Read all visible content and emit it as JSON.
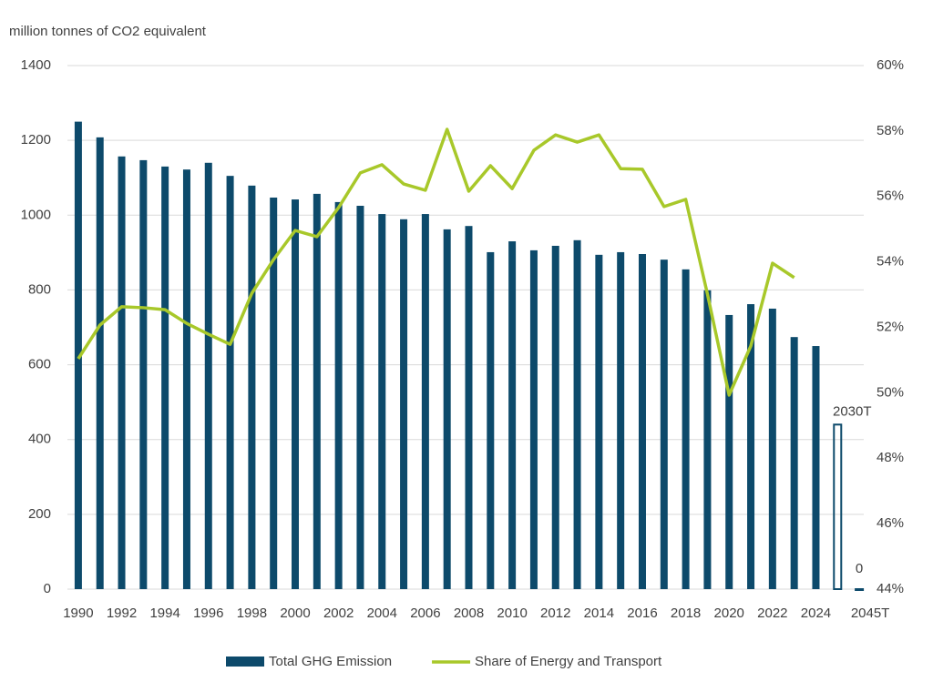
{
  "chart_data": {
    "type": "bar-line",
    "y_axis_label": "million tonnes of CO2 equivalent",
    "categories": [
      "1990",
      null,
      "1992",
      null,
      "1994",
      null,
      "1996",
      null,
      "1998",
      null,
      "2000",
      null,
      "2002",
      null,
      "2004",
      null,
      "2006",
      null,
      "2008",
      null,
      "2010",
      null,
      "2012",
      null,
      "2014",
      null,
      "2016",
      null,
      "2018",
      null,
      "2020",
      null,
      "2022",
      null,
      "2024",
      "2030T",
      "2045T"
    ],
    "series": [
      {
        "name": "Total GHG Emission",
        "type": "bar",
        "color": "#0d4a6b",
        "values": [
          1250,
          1208,
          1157,
          1147,
          1130,
          1122,
          1140,
          1105,
          1079,
          1047,
          1042,
          1057,
          1035,
          1025,
          1003,
          989,
          1003,
          962,
          971,
          901,
          930,
          906,
          918,
          933,
          894,
          901,
          896,
          881,
          855,
          799,
          733,
          762,
          750,
          674,
          650,
          null,
          null
        ]
      },
      {
        "name": "Share of Energy and Transport",
        "type": "line",
        "color": "#a8c82a",
        "axis": "y2",
        "values": [
          51.04,
          52.07,
          52.63,
          52.6,
          52.54,
          52.12,
          51.79,
          51.48,
          53.04,
          54.07,
          54.96,
          54.77,
          55.66,
          56.72,
          56.97,
          56.38,
          56.19,
          58.05,
          56.16,
          56.94,
          56.24,
          57.41,
          57.88,
          57.66,
          57.88,
          56.85,
          56.83,
          55.69,
          55.91,
          53.02,
          49.93,
          51.43,
          53.96,
          53.52,
          null,
          null,
          null
        ]
      },
      {
        "type": "bar",
        "style": "outline",
        "color": "#0d4a6b",
        "values": [
          null,
          null,
          null,
          null,
          null,
          null,
          null,
          null,
          null,
          null,
          null,
          null,
          null,
          null,
          null,
          null,
          null,
          null,
          null,
          null,
          null,
          null,
          null,
          null,
          null,
          null,
          null,
          null,
          null,
          null,
          null,
          null,
          null,
          null,
          null,
          440,
          0
        ],
        "value_labels": [
          null,
          null,
          null,
          null,
          null,
          null,
          null,
          null,
          null,
          null,
          null,
          null,
          null,
          null,
          null,
          null,
          null,
          null,
          null,
          null,
          null,
          null,
          null,
          null,
          null,
          null,
          null,
          null,
          null,
          null,
          null,
          null,
          null,
          null,
          null,
          null,
          "0"
        ]
      }
    ],
    "ylim": [
      0,
      1400
    ],
    "yticks": [
      0,
      200,
      400,
      600,
      800,
      1000,
      1200,
      1400
    ],
    "y2lim": [
      44,
      60
    ],
    "y2ticks": [
      {
        "value": 44,
        "label": "44%"
      },
      {
        "value": 46,
        "label": "46%"
      },
      {
        "value": 48,
        "label": "48%"
      },
      {
        "value": 50,
        "label": "50%"
      },
      {
        "value": 52,
        "label": "52%"
      },
      {
        "value": 54,
        "label": "54%"
      },
      {
        "value": 56,
        "label": "56%"
      },
      {
        "value": 58,
        "label": "58%"
      },
      {
        "value": 60,
        "label": "60%"
      }
    ],
    "grid": true,
    "legend": "bottom"
  }
}
